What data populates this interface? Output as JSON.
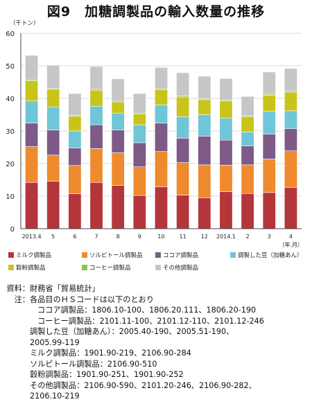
{
  "title": "図9　加糖調製品の輸入数量の推移",
  "chart_data": {
    "type": "bar",
    "stacked": true,
    "y_unit": "（千トン）",
    "x_unit": "（年.月）",
    "ylim": [
      0,
      60
    ],
    "yticks": [
      0,
      10,
      20,
      30,
      40,
      50,
      60
    ],
    "grid": true,
    "legend_position": "bottom",
    "categories": [
      "2013.4",
      "5",
      "6",
      "7",
      "8",
      "9",
      "10",
      "11",
      "12",
      "2014.1",
      "2",
      "3",
      "4"
    ],
    "series": [
      {
        "name": "ミルク調製品",
        "color": "#b5363a",
        "values": [
          14.2,
          14.6,
          10.7,
          14.2,
          13.3,
          10.2,
          12.9,
          10.3,
          9.5,
          11.4,
          10.8,
          11.1,
          12.7
        ]
      },
      {
        "name": "ソルビトール調製品",
        "color": "#ef8a2e",
        "values": [
          11.0,
          8.0,
          8.7,
          10.4,
          10.0,
          8.8,
          10.8,
          10.0,
          10.1,
          8.1,
          8.8,
          10.3,
          11.2
        ]
      },
      {
        "name": "ココア調製品",
        "color": "#7e5a86",
        "values": [
          7.2,
          7.7,
          5.4,
          7.3,
          7.0,
          7.4,
          8.7,
          7.5,
          8.8,
          7.7,
          5.8,
          7.6,
          6.8
        ]
      },
      {
        "name": "調製した豆（加糖あん）",
        "color": "#6ec6d8",
        "values": [
          6.8,
          7.1,
          5.2,
          5.7,
          5.2,
          5.5,
          5.6,
          6.6,
          6.6,
          6.7,
          4.3,
          7.0,
          5.5
        ]
      },
      {
        "name": "穀粉調製品",
        "color": "#c9c41a",
        "values": [
          6.2,
          5.4,
          4.5,
          4.9,
          3.4,
          3.3,
          4.7,
          6.0,
          4.6,
          5.3,
          4.7,
          5.0,
          5.7
        ]
      },
      {
        "name": "コーヒー調製品",
        "color": "#8fc14a",
        "values": [
          0.3,
          0.3,
          0.3,
          0.3,
          0.3,
          0.3,
          0.3,
          0.3,
          0.3,
          0.3,
          0.3,
          0.3,
          0.3
        ]
      },
      {
        "name": "その他調製品",
        "color": "#c6c6c6",
        "values": [
          7.5,
          7.1,
          6.7,
          7.0,
          6.8,
          6.0,
          6.5,
          7.2,
          6.9,
          6.6,
          5.9,
          6.8,
          7.0
        ]
      }
    ]
  },
  "notes": {
    "source_label": "資料：",
    "source_text": "財務省「貿易統計」",
    "note_label": "注：",
    "note_intro": "各品目のＨＳコードは以下のとおり",
    "lines": [
      "ココア調製品：1806.10-100、1806.20.111、1806.20-190",
      "コーヒー調製品：2101.11-100、2101.12-110、2101.12-246",
      "調製した豆（加糖あん）：2005.40-190、2005.51-190、",
      "2005.99-119",
      "ミルク調製品：1901.90-219、2106.90-284",
      "ソルビトール調製品：2106.90-510",
      "穀粉調製品：1901.90-251、1901.90-252",
      "その他調製品：2106.90-590、2101.20-246、2106.90-282、",
      "2106.10-219"
    ]
  }
}
